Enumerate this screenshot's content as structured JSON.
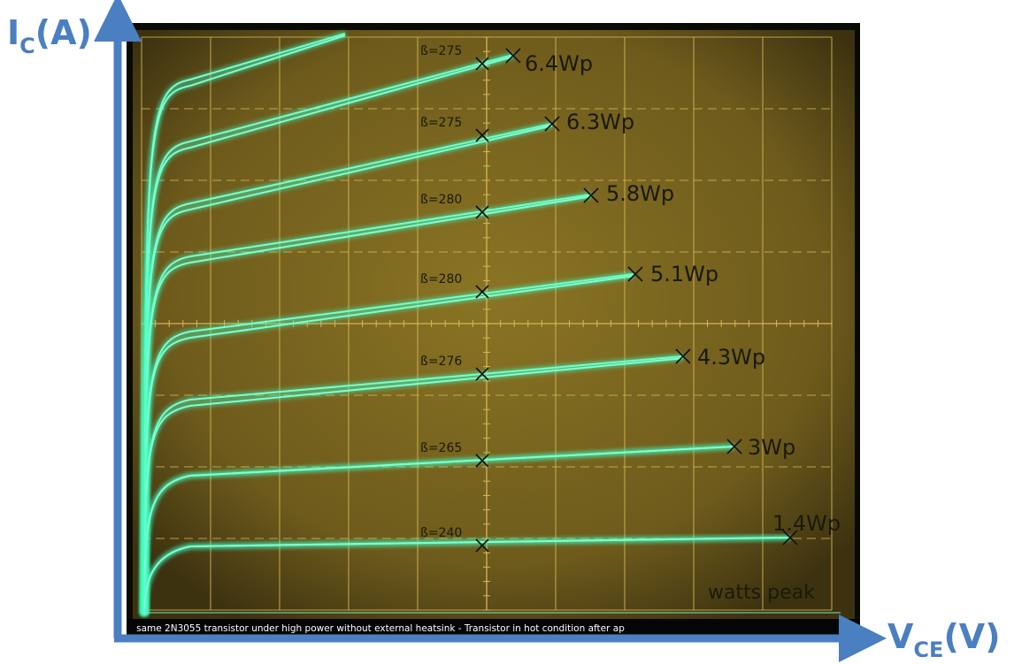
{
  "y_axis": {
    "symbol": "I",
    "subscript": "C",
    "unit": "(A)"
  },
  "x_axis": {
    "symbol": "V",
    "subscript": "CE",
    "unit": "(V)"
  },
  "traces": [
    {
      "beta": "ß=275",
      "power": "6.4Wp"
    },
    {
      "beta": "ß=275",
      "power": "6.3Wp"
    },
    {
      "beta": "ß=280",
      "power": "5.8Wp"
    },
    {
      "beta": "ß=280",
      "power": "5.1Wp"
    },
    {
      "beta": "ß=276",
      "power": "4.3Wp"
    },
    {
      "beta": "ß=265",
      "power": "3Wp"
    },
    {
      "beta": "ß=240",
      "power": "1.4Wp"
    }
  ],
  "note": "watts peak",
  "caption": "same 2N3055 transistor under high power without external heatsink - Transistor in hot condition after ap"
}
